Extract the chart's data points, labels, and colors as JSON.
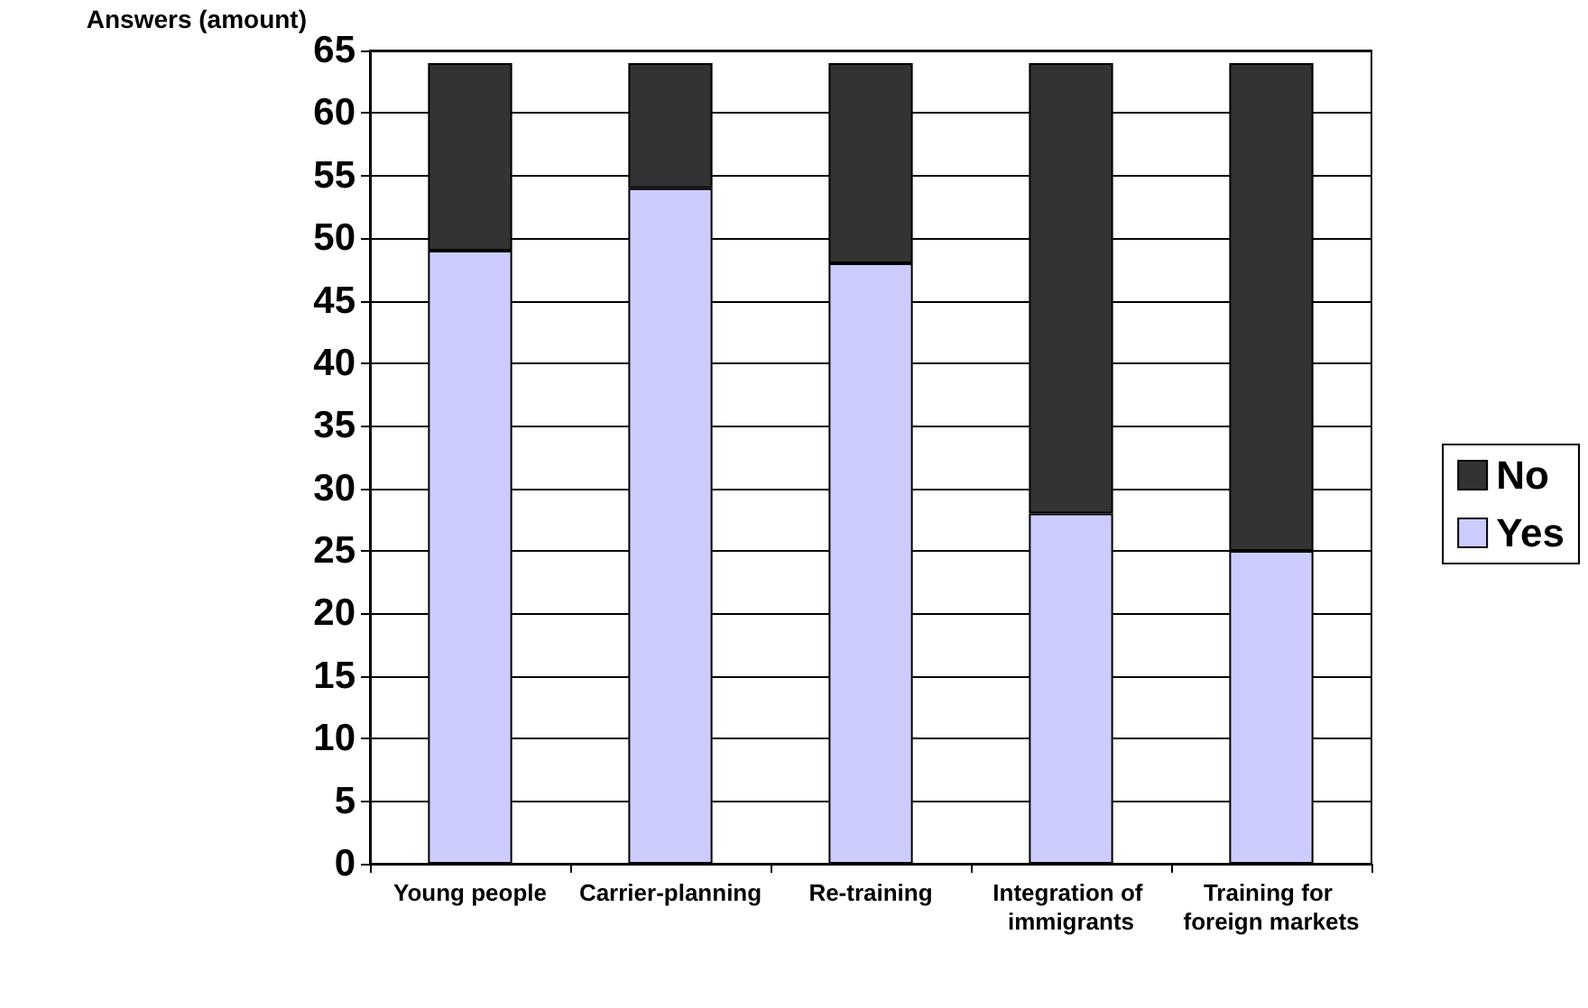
{
  "chart_data": {
    "type": "bar",
    "stacked": true,
    "ylabel": "Answers (amount)",
    "categories": [
      "Young people",
      "Carrier-planning",
      "Re-training",
      "Integration of immigrants",
      "Training for foreign markets"
    ],
    "series": [
      {
        "name": "Yes",
        "color": "#ccccff",
        "values": [
          49,
          54,
          48,
          28,
          25
        ]
      },
      {
        "name": "No",
        "color": "#333333",
        "values": [
          15,
          10,
          16,
          36,
          39
        ]
      }
    ],
    "ylim": [
      0,
      65
    ],
    "yticks": [
      0,
      5,
      10,
      15,
      20,
      25,
      30,
      35,
      40,
      45,
      50,
      55,
      60,
      65
    ],
    "grid": "y",
    "legend": "right"
  }
}
